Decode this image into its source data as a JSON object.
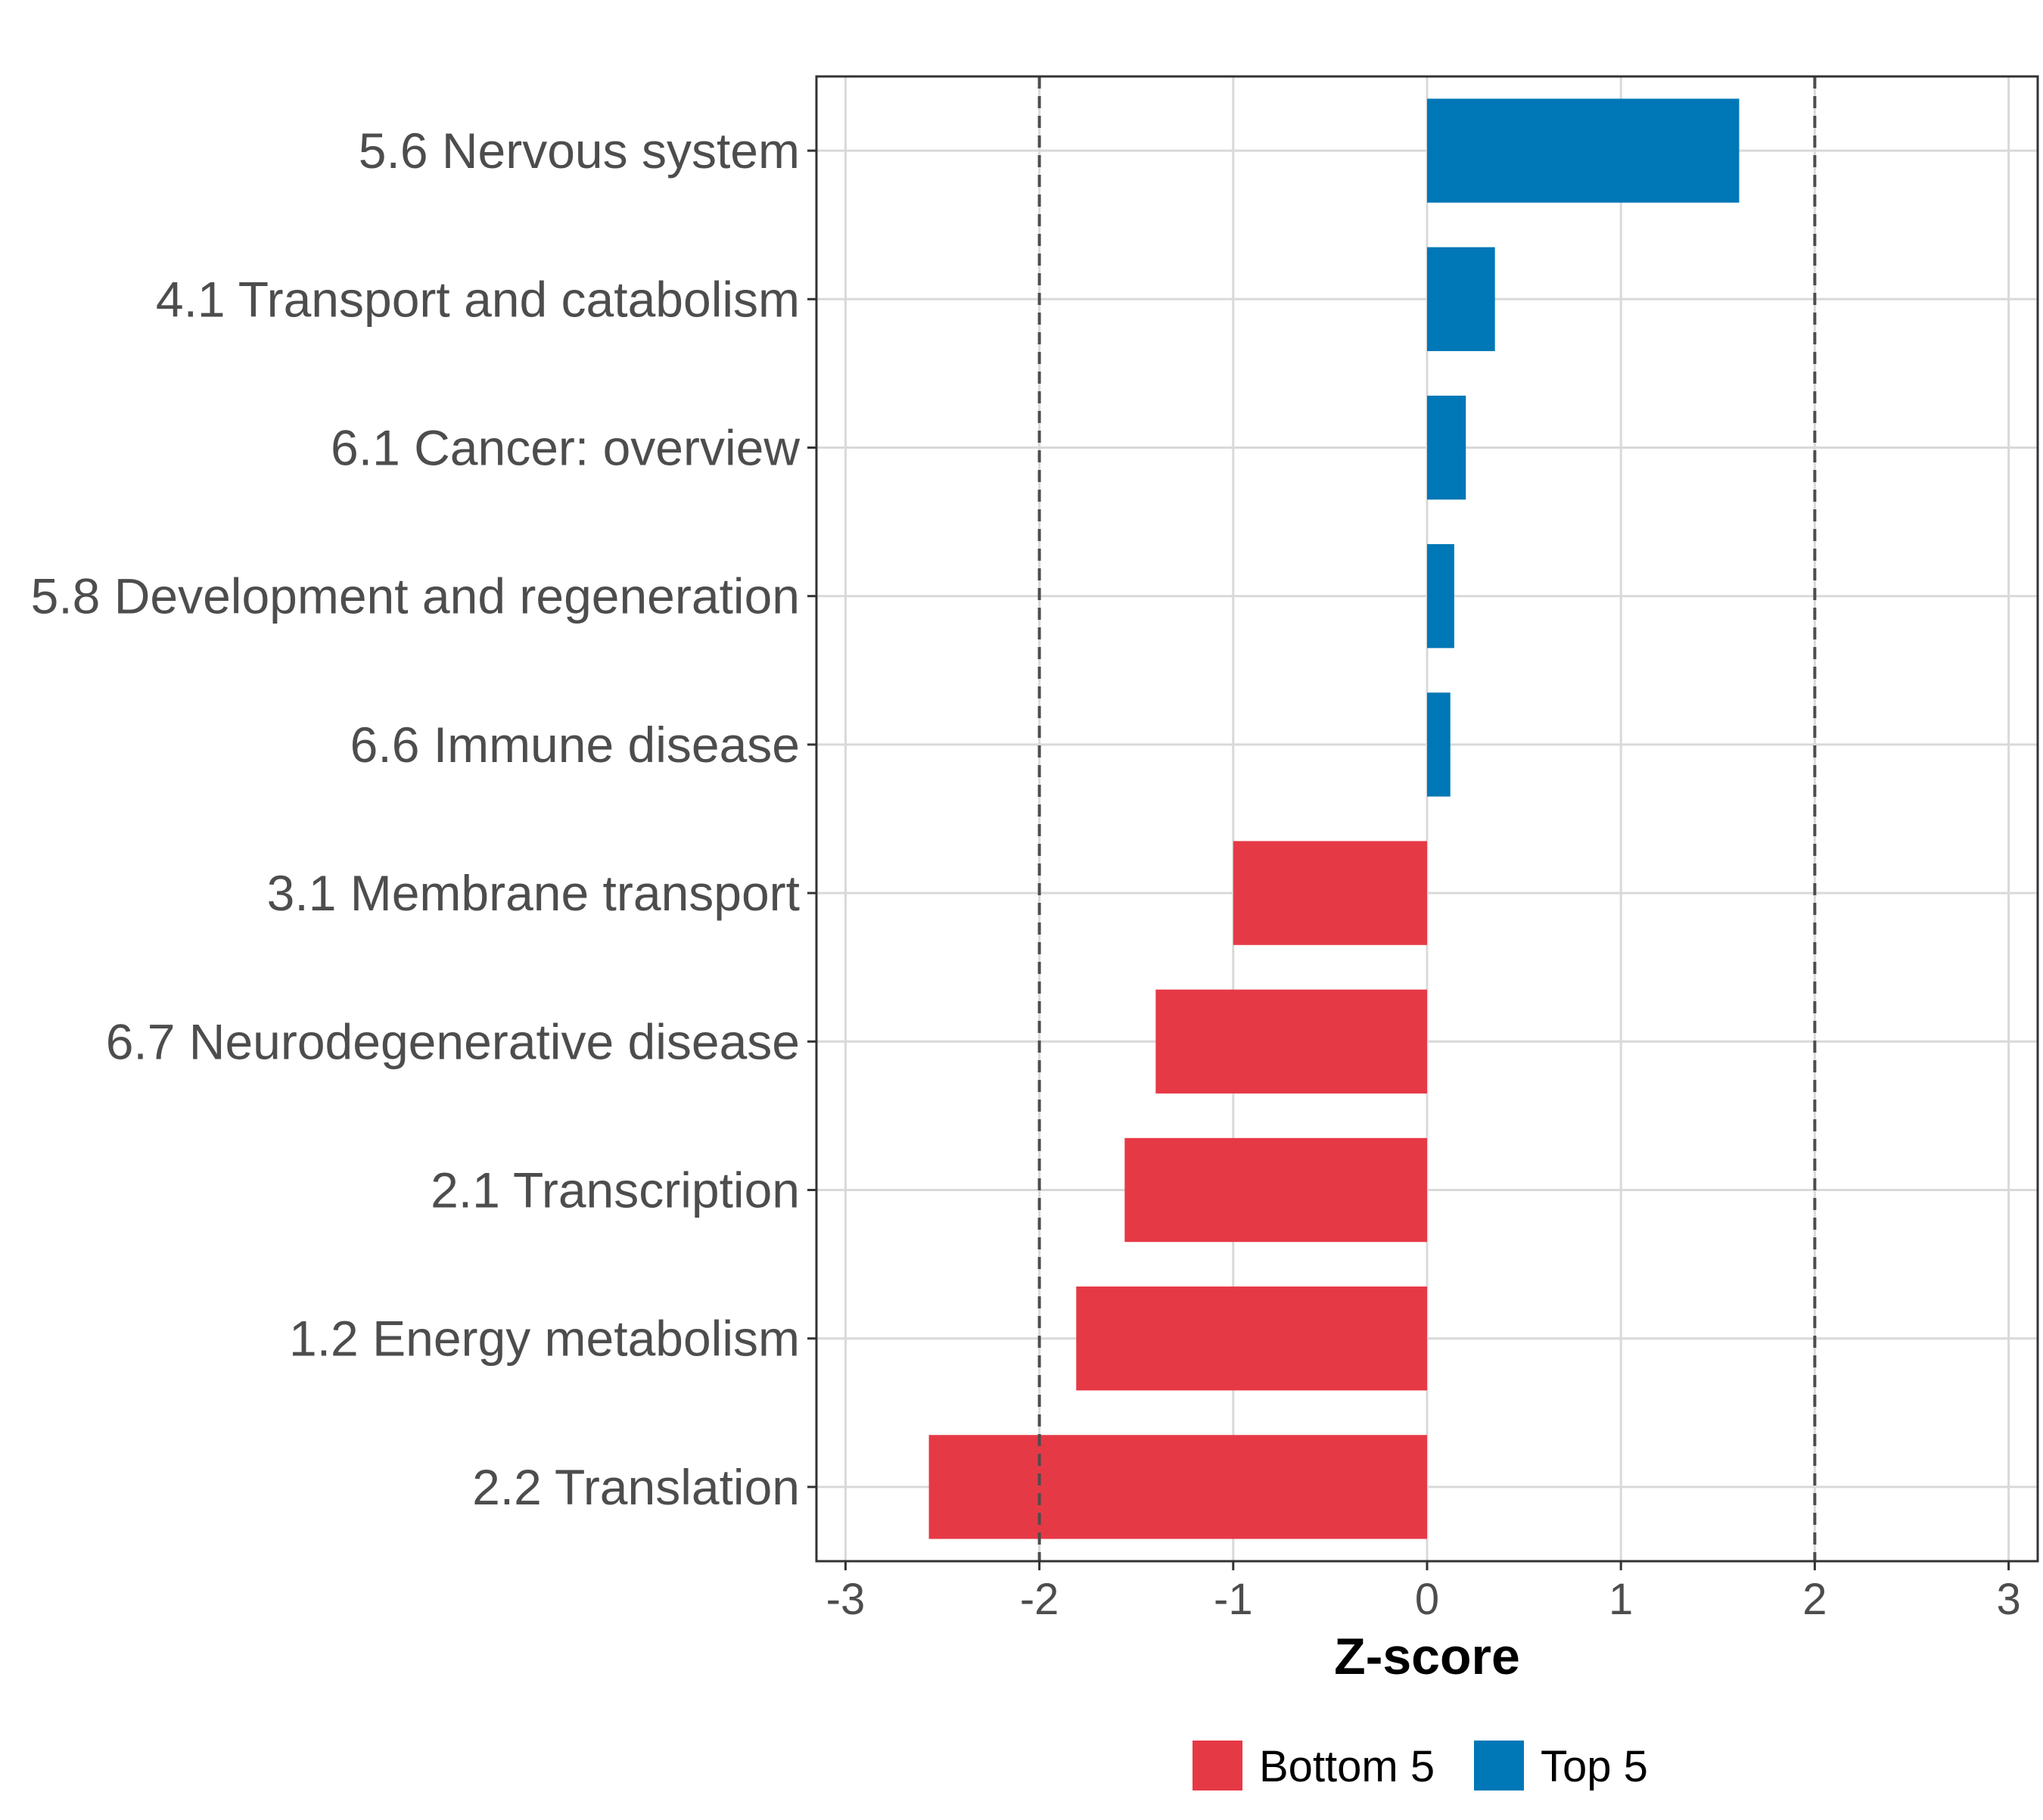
{
  "chart_data": {
    "type": "bar",
    "orientation": "horizontal",
    "title": "",
    "xlabel": "Z-score",
    "ylabel": "",
    "xlim": [
      -3.15,
      3.15
    ],
    "xticks": [
      -3,
      -2,
      -1,
      0,
      1,
      2,
      3
    ],
    "grid": true,
    "reference_lines": [
      -2,
      2
    ],
    "legend_position": "bottom",
    "categories": [
      "5.6 Nervous system",
      "4.1 Transport and catabolism",
      "6.1 Cancer: overview",
      "5.8 Development and regeneration",
      "6.6 Immune disease",
      "3.1 Membrane transport",
      "6.7 Neurodegenerative disease",
      "2.1 Transcription",
      "1.2 Energy metabolism",
      "2.2 Translation"
    ],
    "values": [
      1.61,
      0.35,
      0.2,
      0.14,
      0.12,
      -1.0,
      -1.4,
      -1.56,
      -1.81,
      -2.57
    ],
    "groups": [
      "Top 5",
      "Top 5",
      "Top 5",
      "Top 5",
      "Top 5",
      "Bottom 5",
      "Bottom 5",
      "Bottom 5",
      "Bottom 5",
      "Bottom 5"
    ],
    "legend": [
      {
        "name": "Bottom 5",
        "color": "#E63946"
      },
      {
        "name": "Top 5",
        "color": "#0077B6"
      }
    ]
  }
}
